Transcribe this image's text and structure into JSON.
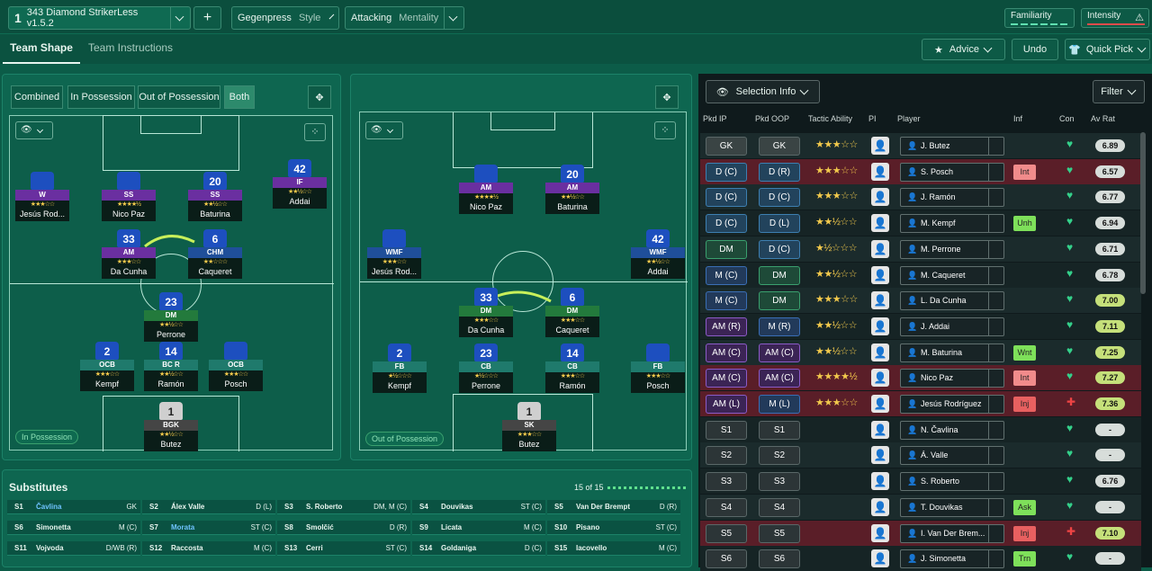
{
  "topbar": {
    "tactic_num": "1",
    "tactic_name": "343 Diamond StrikerLess v1.5.2",
    "add": "+",
    "style_value": "Gegenpress",
    "style_label": "Style",
    "mentality_value": "Attacking",
    "mentality_label": "Mentality",
    "familiarity": "Familiarity",
    "intensity": "Intensity"
  },
  "subnav": {
    "tab1": "Team Shape",
    "tab2": "Team Instructions",
    "advice": "Advice",
    "undo": "Undo",
    "quickpick": "Quick Pick"
  },
  "left": {
    "seg": [
      "Combined",
      "In Possession",
      "Out of Possession",
      "Both"
    ],
    "label": "In Possession"
  },
  "mid": {
    "label": "Out of Possession"
  },
  "ip_players": [
    {
      "num": "",
      "role": "W",
      "stars": "★★★☆☆",
      "name": "Jesús Rod..."
    },
    {
      "num": "",
      "role": "SS",
      "stars": "★★★★½",
      "name": "Nico Paz"
    },
    {
      "num": "20",
      "role": "SS",
      "stars": "★★½☆☆",
      "name": "Baturina"
    },
    {
      "num": "42",
      "role": "IF",
      "stars": "★★½☆☆",
      "name": "Addai"
    },
    {
      "num": "33",
      "role": "AM",
      "stars": "★★★☆☆",
      "name": "Da Cunha"
    },
    {
      "num": "6",
      "role": "CHM",
      "stars": "★★☆☆☆",
      "name": "Caqueret"
    },
    {
      "num": "23",
      "role": "DM",
      "stars": "★★½☆☆",
      "name": "Perrone"
    },
    {
      "num": "2",
      "role": "OCB",
      "stars": "★★★☆☆",
      "name": "Kempf"
    },
    {
      "num": "14",
      "role": "BC R",
      "stars": "★★½☆☆",
      "name": "Ramón"
    },
    {
      "num": "",
      "role": "OCB",
      "stars": "★★★☆☆",
      "name": "Posch"
    },
    {
      "num": "1",
      "role": "BGK",
      "stars": "★★½☆☆",
      "name": "Butez"
    }
  ],
  "oop_players": [
    {
      "num": "",
      "role": "AM",
      "stars": "★★★★½",
      "name": "Nico Paz"
    },
    {
      "num": "20",
      "role": "AM",
      "stars": "★★½☆☆",
      "name": "Baturina"
    },
    {
      "num": "",
      "role": "WMF",
      "stars": "★★★☆☆",
      "name": "Jesús Rod..."
    },
    {
      "num": "42",
      "role": "WMF",
      "stars": "★★½☆☆",
      "name": "Addai"
    },
    {
      "num": "33",
      "role": "DM",
      "stars": "★★★☆☆",
      "name": "Da Cunha"
    },
    {
      "num": "6",
      "role": "DM",
      "stars": "★★★☆☆",
      "name": "Caqueret"
    },
    {
      "num": "2",
      "role": "FB",
      "stars": "★½☆☆☆",
      "name": "Kempf"
    },
    {
      "num": "23",
      "role": "CB",
      "stars": "★½☆☆☆",
      "name": "Perrone"
    },
    {
      "num": "14",
      "role": "CB",
      "stars": "★★★☆☆",
      "name": "Ramón"
    },
    {
      "num": "",
      "role": "FB",
      "stars": "★★★☆☆",
      "name": "Posch"
    },
    {
      "num": "1",
      "role": "SK",
      "stars": "★★★☆☆",
      "name": "Butez"
    }
  ],
  "right": {
    "selection": "Selection Info",
    "filter": "Filter",
    "headers": [
      "Pkd IP",
      "Pkd OOP",
      "Tactic Ability",
      "PI",
      "Player",
      "Inf",
      "Con",
      "Av Rat"
    ]
  },
  "rows": [
    {
      "ip": "GK",
      "oop": "GK",
      "stars": "★★★☆☆",
      "player": "J. Butez",
      "inf": "",
      "rat": "6.89"
    },
    {
      "ip": "D (C)",
      "oop": "D (R)",
      "stars": "★★★☆☆",
      "player": "S. Posch",
      "inf": "Int",
      "rat": "6.57"
    },
    {
      "ip": "D (C)",
      "oop": "D (C)",
      "stars": "★★★☆☆",
      "player": "J. Ramón",
      "inf": "",
      "rat": "6.77"
    },
    {
      "ip": "D (C)",
      "oop": "D (L)",
      "stars": "★★½☆☆",
      "player": "M. Kempf",
      "inf": "Unh",
      "rat": "6.94"
    },
    {
      "ip": "DM",
      "oop": "D (C)",
      "stars": "★½☆☆☆",
      "player": "M. Perrone",
      "inf": "",
      "rat": "6.71"
    },
    {
      "ip": "M (C)",
      "oop": "DM",
      "stars": "★★½☆☆",
      "player": "M. Caqueret",
      "inf": "",
      "rat": "6.78"
    },
    {
      "ip": "M (C)",
      "oop": "DM",
      "stars": "★★★☆☆",
      "player": "L. Da Cunha",
      "inf": "",
      "rat": "7.00"
    },
    {
      "ip": "AM (R)",
      "oop": "M (R)",
      "stars": "★★½☆☆",
      "player": "J. Addai",
      "inf": "",
      "rat": "7.11"
    },
    {
      "ip": "AM (C)",
      "oop": "AM (C)",
      "stars": "★★½☆☆",
      "player": "M. Baturina",
      "inf": "Wnt",
      "rat": "7.25"
    },
    {
      "ip": "AM (C)",
      "oop": "AM (C)",
      "stars": "★★★★½",
      "player": "Nico Paz",
      "inf": "Int",
      "rat": "7.27"
    },
    {
      "ip": "AM (L)",
      "oop": "M (L)",
      "stars": "★★★☆☆",
      "player": "Jesús Rodríguez",
      "inf": "Inj",
      "rat": "7.36"
    },
    {
      "ip": "S1",
      "oop": "S1",
      "stars": "",
      "player": "N. Čavlina",
      "inf": "",
      "rat": "-"
    },
    {
      "ip": "S2",
      "oop": "S2",
      "stars": "",
      "player": "Á. Valle",
      "inf": "",
      "rat": "-"
    },
    {
      "ip": "S3",
      "oop": "S3",
      "stars": "",
      "player": "S. Roberto",
      "inf": "",
      "rat": "6.76"
    },
    {
      "ip": "S4",
      "oop": "S4",
      "stars": "",
      "player": "T. Douvikas",
      "inf": "Ask",
      "rat": "-"
    },
    {
      "ip": "S5",
      "oop": "S5",
      "stars": "",
      "player": "I. Van Der Brem...",
      "inf": "Inj",
      "rat": "7.10"
    },
    {
      "ip": "S6",
      "oop": "S6",
      "stars": "",
      "player": "J. Simonetta",
      "inf": "Trn",
      "rat": "-"
    }
  ],
  "subs": {
    "title": "Substitutes",
    "count": "15 of 15",
    "items": [
      {
        "slot": "S1",
        "name": "Čavlina",
        "pos": "GK"
      },
      {
        "slot": "S2",
        "name": "Álex Valle",
        "pos": "D (L)"
      },
      {
        "slot": "S3",
        "name": "S. Roberto",
        "pos": "DM, M (C)"
      },
      {
        "slot": "S4",
        "name": "Douvikas",
        "pos": "ST (C)"
      },
      {
        "slot": "S5",
        "name": "Van Der Brempt",
        "pos": "D (R)"
      },
      {
        "slot": "S6",
        "name": "Simonetta",
        "pos": "M (C)"
      },
      {
        "slot": "S7",
        "name": "Morata",
        "pos": "ST (C)"
      },
      {
        "slot": "S8",
        "name": "Smolčić",
        "pos": "D (R)"
      },
      {
        "slot": "S9",
        "name": "Licata",
        "pos": "M (C)"
      },
      {
        "slot": "S10",
        "name": "Pisano",
        "pos": "ST (C)"
      },
      {
        "slot": "S11",
        "name": "Vojvoda",
        "pos": "D/WB (R)"
      },
      {
        "slot": "S12",
        "name": "Raccosta",
        "pos": "M (C)"
      },
      {
        "slot": "S13",
        "name": "Cerri",
        "pos": "ST (C)"
      },
      {
        "slot": "S14",
        "name": "Goldaniga",
        "pos": "D (C)"
      },
      {
        "slot": "S15",
        "name": "Iacovello",
        "pos": "M (C)"
      }
    ]
  }
}
